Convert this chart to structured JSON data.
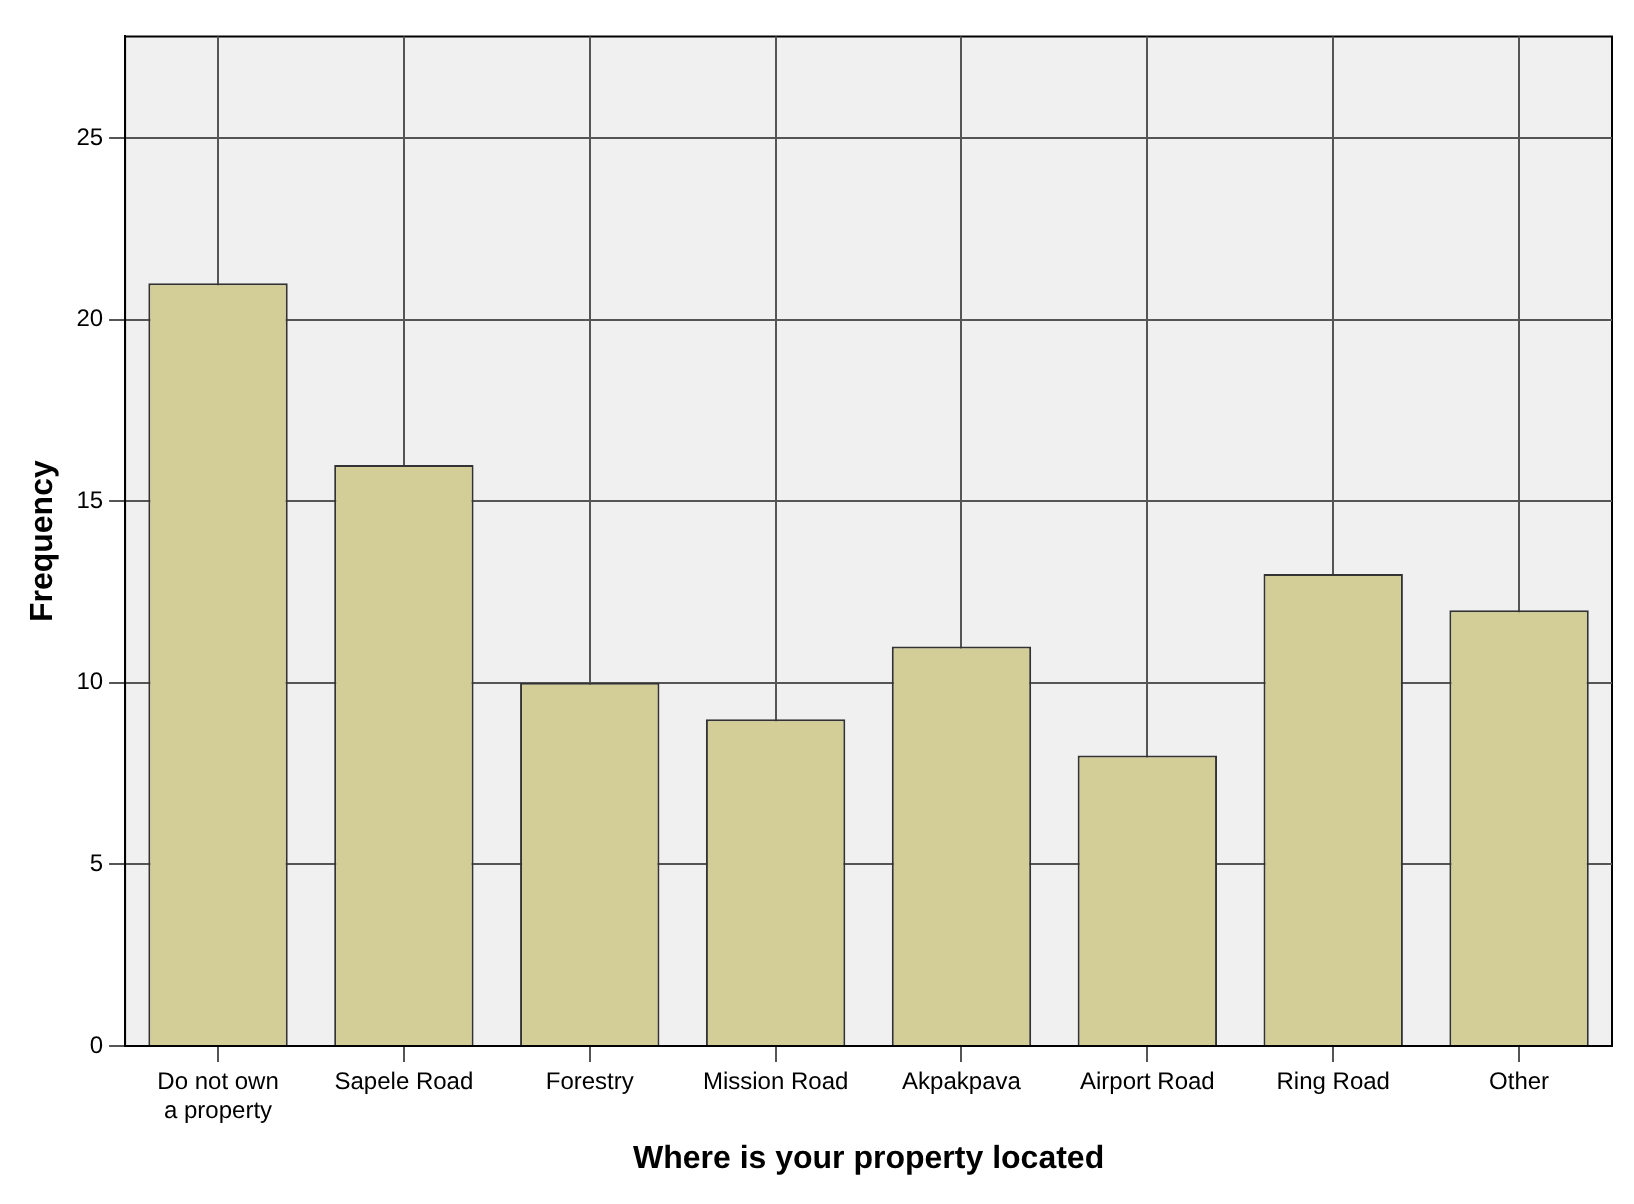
{
  "chart_data": {
    "type": "bar",
    "xlabel": "Where is your property located",
    "ylabel": "Frequency",
    "categories": [
      "Do not own a property",
      "Sapele Road",
      "Forestry",
      "Mission Road",
      "Akpakpava",
      "Airport Road",
      "Ring Road",
      "Other"
    ],
    "values": [
      21,
      16,
      10,
      9,
      11,
      8,
      13,
      12
    ],
    "color": "#d3ce97",
    "ylim": [
      0,
      27.8
    ],
    "yticks": [
      0,
      5,
      10,
      15,
      20,
      25
    ],
    "grid": true
  }
}
